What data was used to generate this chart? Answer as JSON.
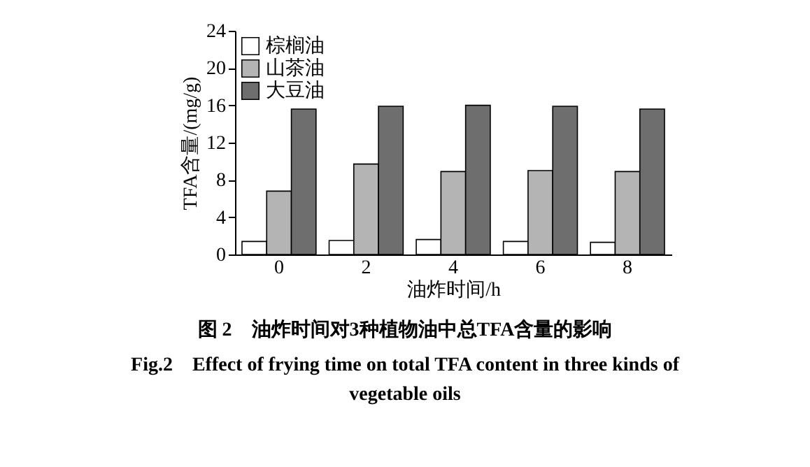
{
  "chart_data": {
    "type": "bar",
    "title": "图 2　油炸时间对3种植物油中总TFA含量的影响",
    "subtitle": "Fig.2　Effect of frying time on total TFA content in three kinds of vegetable oils",
    "xlabel": "油炸时间/h",
    "ylabel": "TFA含量/(mg/g)",
    "categories": [
      "0",
      "2",
      "4",
      "6",
      "8"
    ],
    "series": [
      {
        "name": "棕榈油",
        "color": "#ffffff",
        "values": [
          1.4,
          1.5,
          1.6,
          1.4,
          1.3
        ]
      },
      {
        "name": "山茶油",
        "color": "#b4b4b4",
        "values": [
          6.8,
          9.7,
          8.9,
          9.0,
          8.9
        ]
      },
      {
        "name": "大豆油",
        "color": "#6e6e6e",
        "values": [
          15.6,
          15.9,
          16.0,
          15.9,
          15.6
        ]
      }
    ],
    "ylim": [
      0,
      24
    ],
    "yticks": [
      0,
      4,
      8,
      12,
      16,
      20,
      24
    ],
    "grid": false,
    "legend": "top left"
  }
}
